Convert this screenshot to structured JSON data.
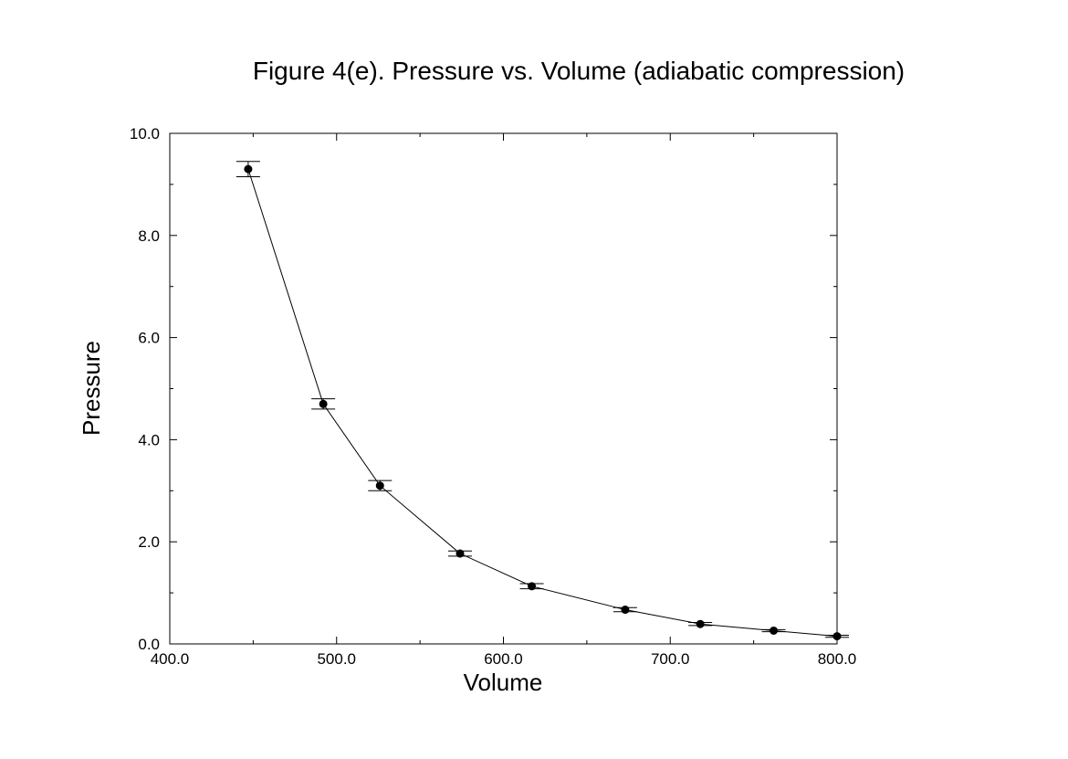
{
  "chart_data": {
    "type": "scatter",
    "title": "Figure 4(e). Pressure vs. Volume (adiabatic compression)",
    "xlabel": "Volume",
    "ylabel": "Pressure",
    "xlim": [
      400,
      800
    ],
    "ylim": [
      0,
      10
    ],
    "x_ticks": [
      400,
      500,
      600,
      700,
      800
    ],
    "y_ticks": [
      0,
      2,
      4,
      6,
      8,
      10
    ],
    "x_tick_labels": [
      "400.0",
      "500.0",
      "600.0",
      "700.0",
      "800.0"
    ],
    "y_tick_labels": [
      "0.0",
      "2.0",
      "4.0",
      "6.0",
      "8.0",
      "10.0"
    ],
    "grid": false,
    "legend": "none",
    "connected_line": true,
    "marker_color": "#000000",
    "series": [
      {
        "x": [
          447,
          492,
          526,
          574,
          617,
          673,
          718,
          762,
          800
        ],
        "y": [
          9.3,
          4.7,
          3.1,
          1.77,
          1.13,
          0.67,
          0.39,
          0.26,
          0.15
        ],
        "y_error": [
          0.15,
          0.1,
          0.1,
          0.05,
          0.05,
          0.04,
          0.03,
          0.02,
          0.02
        ]
      }
    ]
  }
}
